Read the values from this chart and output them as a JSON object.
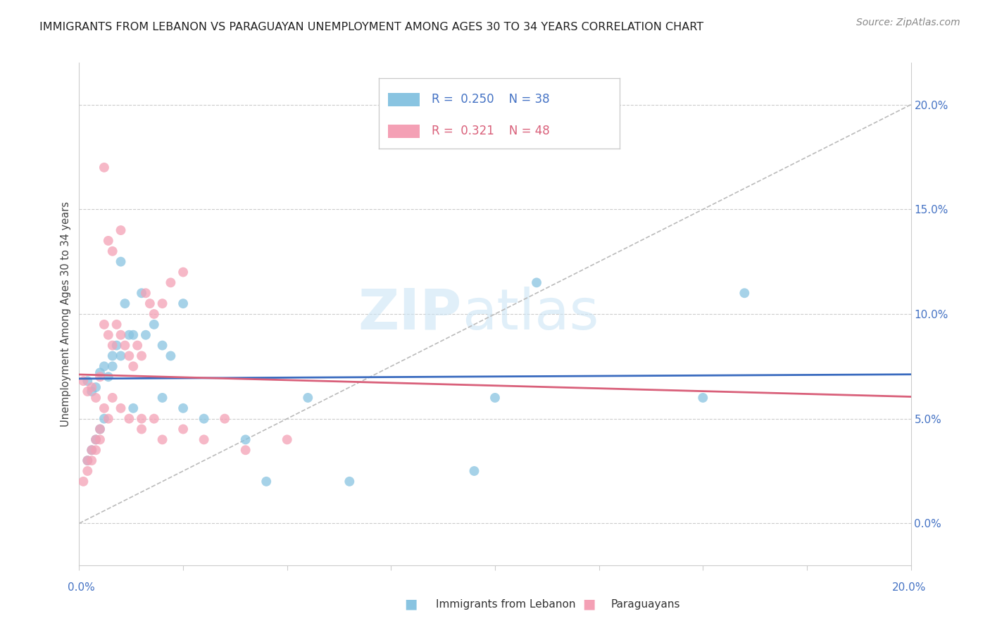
{
  "title": "IMMIGRANTS FROM LEBANON VS PARAGUAYAN UNEMPLOYMENT AMONG AGES 30 TO 34 YEARS CORRELATION CHART",
  "source": "Source: ZipAtlas.com",
  "ylabel": "Unemployment Among Ages 30 to 34 years",
  "right_yticklabels": [
    "0.0%",
    "5.0%",
    "10.0%",
    "15.0%",
    "20.0%"
  ],
  "right_yticks": [
    0.0,
    0.05,
    0.1,
    0.15,
    0.2
  ],
  "xlim": [
    0.0,
    0.2
  ],
  "ylim": [
    -0.02,
    0.22
  ],
  "legend1_r": "0.250",
  "legend1_n": "38",
  "legend2_r": "0.321",
  "legend2_n": "48",
  "legend1_label": "Immigrants from Lebanon",
  "legend2_label": "Paraguayans",
  "color_blue": "#89c4e1",
  "color_pink": "#f4a0b5",
  "color_blue_line": "#3a6bbf",
  "color_pink_line": "#d9607a",
  "watermark_zip": "ZIP",
  "watermark_atlas": "atlas",
  "grid_color": "#cccccc",
  "bg_color": "#ffffff",
  "blue_x": [
    0.002,
    0.003,
    0.004,
    0.005,
    0.006,
    0.007,
    0.008,
    0.009,
    0.01,
    0.011,
    0.012,
    0.013,
    0.015,
    0.016,
    0.018,
    0.02,
    0.022,
    0.025,
    0.03,
    0.04,
    0.002,
    0.003,
    0.004,
    0.005,
    0.006,
    0.008,
    0.01,
    0.013,
    0.02,
    0.025,
    0.055,
    0.065,
    0.1,
    0.11,
    0.15,
    0.16,
    0.095,
    0.045
  ],
  "blue_y": [
    0.068,
    0.063,
    0.065,
    0.072,
    0.075,
    0.07,
    0.08,
    0.085,
    0.125,
    0.105,
    0.09,
    0.09,
    0.11,
    0.09,
    0.095,
    0.085,
    0.08,
    0.055,
    0.05,
    0.04,
    0.03,
    0.035,
    0.04,
    0.045,
    0.05,
    0.075,
    0.08,
    0.055,
    0.06,
    0.105,
    0.06,
    0.02,
    0.06,
    0.115,
    0.06,
    0.11,
    0.025,
    0.02
  ],
  "pink_x": [
    0.001,
    0.002,
    0.003,
    0.004,
    0.005,
    0.006,
    0.007,
    0.008,
    0.009,
    0.01,
    0.011,
    0.012,
    0.013,
    0.014,
    0.015,
    0.016,
    0.017,
    0.018,
    0.02,
    0.022,
    0.002,
    0.003,
    0.004,
    0.005,
    0.006,
    0.007,
    0.008,
    0.01,
    0.012,
    0.015,
    0.018,
    0.02,
    0.025,
    0.03,
    0.035,
    0.04,
    0.05,
    0.001,
    0.002,
    0.003,
    0.004,
    0.005,
    0.006,
    0.007,
    0.008,
    0.01,
    0.015,
    0.025
  ],
  "pink_y": [
    0.068,
    0.063,
    0.065,
    0.06,
    0.07,
    0.095,
    0.09,
    0.085,
    0.095,
    0.09,
    0.085,
    0.08,
    0.075,
    0.085,
    0.08,
    0.11,
    0.105,
    0.1,
    0.105,
    0.115,
    0.03,
    0.035,
    0.04,
    0.045,
    0.055,
    0.05,
    0.06,
    0.055,
    0.05,
    0.045,
    0.05,
    0.04,
    0.045,
    0.04,
    0.05,
    0.035,
    0.04,
    0.02,
    0.025,
    0.03,
    0.035,
    0.04,
    0.17,
    0.135,
    0.13,
    0.14,
    0.05,
    0.12
  ]
}
